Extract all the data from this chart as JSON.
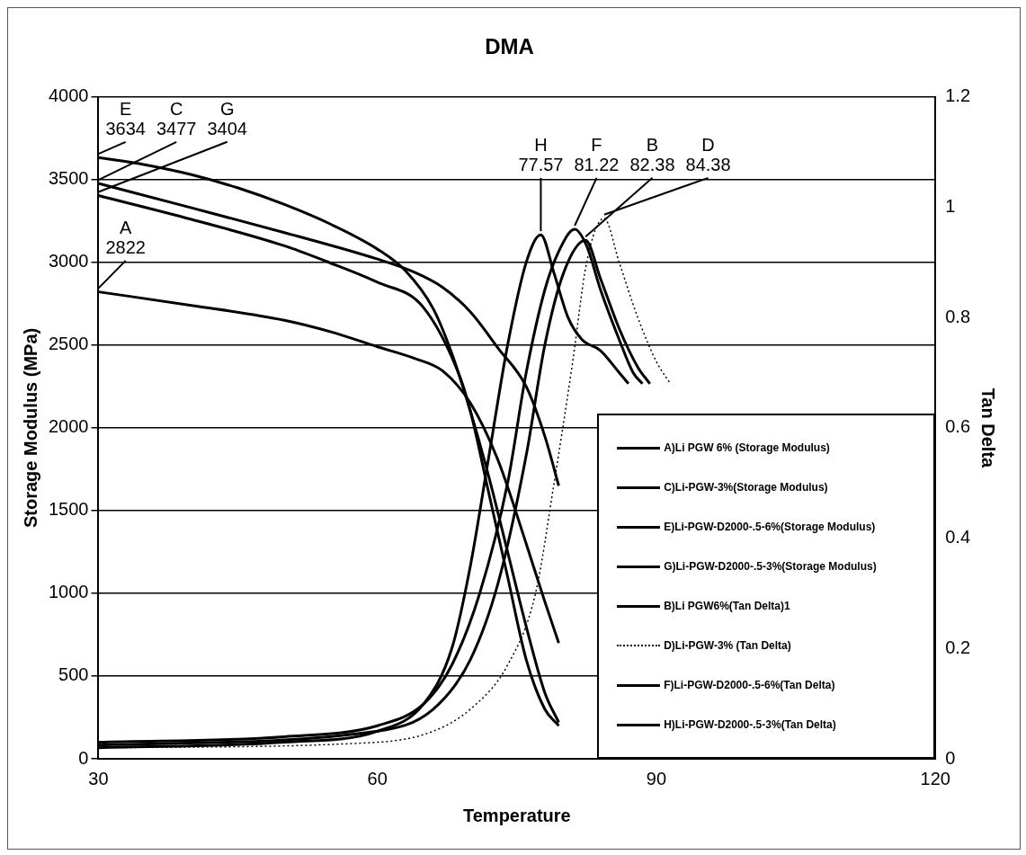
{
  "chart_data": {
    "type": "line",
    "title": "DMA",
    "xlabel": "Temperature",
    "ylabel": "Storage Modulus (MPa)",
    "y2label": "Tan Delta",
    "xlim": [
      30,
      120
    ],
    "xticks": [
      30,
      60,
      90,
      120
    ],
    "ylim": [
      0,
      4000
    ],
    "yticks": [
      0,
      500,
      1000,
      1500,
      2000,
      2500,
      3000,
      3500,
      4000
    ],
    "y2lim": [
      0,
      1.2
    ],
    "y2ticks": [
      0,
      0.2,
      0.4,
      0.6,
      0.8,
      1,
      1.2
    ],
    "grid": "y",
    "legend": "bottom right",
    "marker": "none",
    "line_style": "solid",
    "series": [
      {
        "name": "A)Li PGW 6% (Storage Modulus)",
        "color": "#000000",
        "x": [
          30,
          40,
          50,
          55,
          60,
          64,
          67,
          70,
          73,
          76,
          78,
          79.5
        ],
        "values": [
          2822,
          2740,
          2650,
          2580,
          2490,
          2420,
          2345,
          2150,
          1800,
          1300,
          950,
          700
        ]
      },
      {
        "name": "C)Li-PGW-3%(Storage Modulus)",
        "color": "#000000",
        "x": [
          30,
          40,
          50,
          60,
          64,
          67,
          70,
          73,
          76,
          78,
          79.5
        ],
        "values": [
          3477,
          3330,
          3180,
          3020,
          2940,
          2850,
          2700,
          2480,
          2250,
          1950,
          1650
        ]
      },
      {
        "name": "E)Li-PGW-D2000-.5-6%(Storage Modulus)",
        "color": "#000000",
        "x": [
          30,
          35,
          40,
          45,
          50,
          55,
          60,
          63,
          66,
          68,
          70,
          72,
          74,
          76,
          78,
          79.5
        ],
        "values": [
          3634,
          3590,
          3530,
          3450,
          3350,
          3230,
          3080,
          2950,
          2720,
          2450,
          2100,
          1700,
          1250,
          800,
          400,
          220
        ]
      },
      {
        "name": "G)Li-PGW-D2000-.5-3%(Storage Modulus)",
        "color": "#000000",
        "x": [
          30,
          40,
          50,
          54.5,
          60,
          64.9,
          68.9,
          70,
          72,
          74,
          76,
          78,
          79.5
        ],
        "values": [
          3404,
          3260,
          3100,
          3006,
          2880,
          2731,
          2304,
          2100,
          1600,
          1100,
          600,
          300,
          200
        ]
      },
      {
        "name": "B)Li PGW6%(Tan Delta)1",
        "color": "#000000",
        "axis": "y2",
        "x": [
          30,
          60,
          66,
          70,
          73,
          76,
          78,
          80,
          82.38,
          84,
          86,
          88,
          89.3
        ],
        "values": [
          0.025,
          0.05,
          0.09,
          0.18,
          0.32,
          0.55,
          0.75,
          0.88,
          0.94,
          0.87,
          0.78,
          0.71,
          0.68
        ]
      },
      {
        "name": "D)Li-PGW-3% (Tan Delta)",
        "color": "#000000",
        "axis": "y2",
        "line_style": "dotted",
        "x": [
          30,
          60,
          66,
          70,
          74,
          77,
          79,
          81,
          82.5,
          84.38,
          86,
          88,
          90,
          91.5
        ],
        "values": [
          0.02,
          0.03,
          0.05,
          0.09,
          0.17,
          0.3,
          0.5,
          0.72,
          0.9,
          0.98,
          0.9,
          0.8,
          0.72,
          0.68
        ]
      },
      {
        "name": "F)Li-PGW-D2000-.5-6%(Tan Delta)",
        "color": "#000000",
        "axis": "y2",
        "x": [
          30,
          50,
          60,
          65,
          68,
          71,
          74,
          76,
          78,
          79.5,
          81.22,
          82.5,
          84,
          86,
          87.5,
          88.5
        ],
        "values": [
          0.03,
          0.04,
          0.06,
          0.1,
          0.17,
          0.3,
          0.5,
          0.7,
          0.85,
          0.92,
          0.96,
          0.93,
          0.85,
          0.76,
          0.7,
          0.68
        ]
      },
      {
        "name": "H)Li-PGW-D2000-.5-3%(Tan Delta)",
        "color": "#000000",
        "axis": "y2",
        "x": [
          30,
          50,
          60,
          65,
          68,
          70,
          72,
          74,
          76,
          77.57,
          79,
          80.5,
          82,
          84,
          86,
          87
        ],
        "values": [
          0.02,
          0.03,
          0.05,
          0.1,
          0.2,
          0.35,
          0.55,
          0.75,
          0.9,
          0.95,
          0.88,
          0.8,
          0.76,
          0.74,
          0.7,
          0.68
        ]
      }
    ],
    "annotations": [
      {
        "text": "E\n3634",
        "x": 30,
        "y": 3634
      },
      {
        "text": "C\n3477",
        "x": 30,
        "y": 3477
      },
      {
        "text": "G\n3404",
        "x": 30,
        "y": 3404
      },
      {
        "text": "A\n2822",
        "x": 30,
        "y": 2822
      },
      {
        "text": "H\n77.57",
        "x": 77.57,
        "y": 3167
      },
      {
        "text": "F\n81.22",
        "x": 81.22,
        "y": 3200
      },
      {
        "text": "B\n82.38",
        "x": 82.38,
        "y": 3133
      },
      {
        "text": "D\n84.38",
        "x": 84.38,
        "y": 3267
      }
    ]
  }
}
